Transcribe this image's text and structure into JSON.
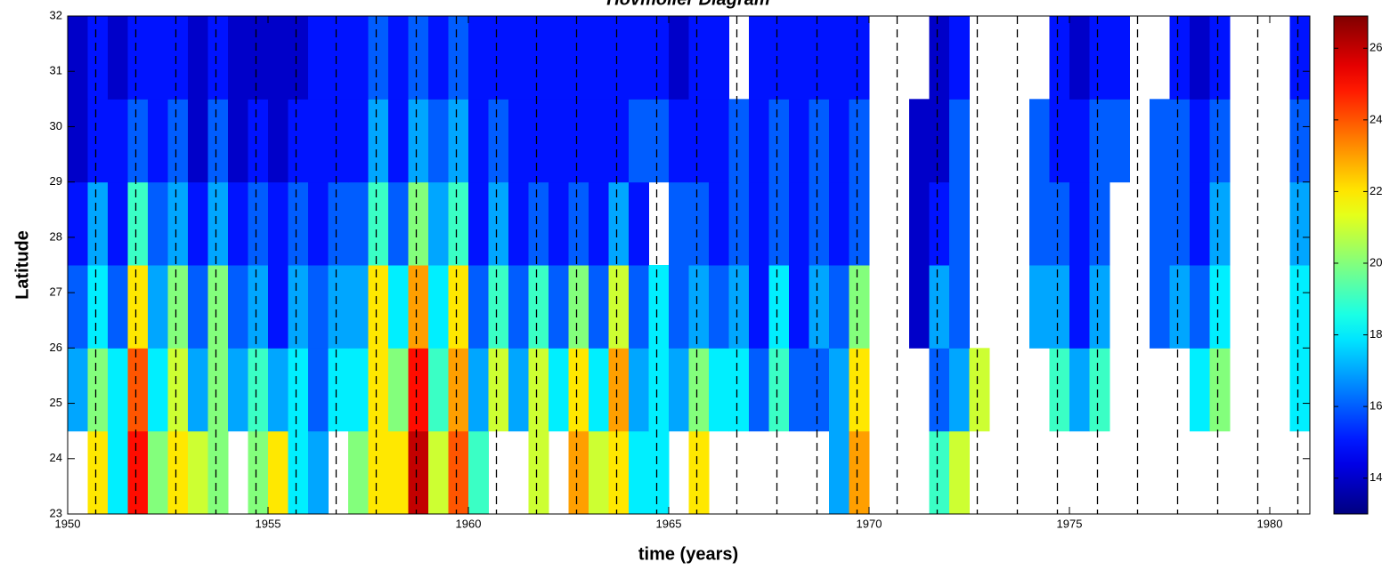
{
  "chart_data": {
    "type": "heatmap",
    "title": "Hovmoller Diagram",
    "xlabel": "time (years)",
    "ylabel": "Latitude",
    "xlim": [
      1950,
      1981
    ],
    "ylim": [
      23,
      32
    ],
    "xticks": [
      1950,
      1955,
      1960,
      1965,
      1970,
      1975,
      1980
    ],
    "yticks": [
      23,
      24,
      25,
      26,
      27,
      28,
      29,
      30,
      31,
      32
    ],
    "colormap": "jet",
    "clim": [
      13,
      26.9
    ],
    "cticks": [
      14,
      16,
      18,
      20,
      22,
      24,
      26
    ],
    "dashed_lines": [
      1950.7,
      1951.7,
      1952.7,
      1953.7,
      1954.7,
      1955.7,
      1956.7,
      1957.7,
      1958.7,
      1959.7,
      1960.7,
      1961.7,
      1962.7,
      1963.7,
      1964.7,
      1965.7,
      1966.7,
      1967.7,
      1968.7,
      1969.7,
      1970.7,
      1971.7,
      1972.7,
      1973.7,
      1974.7,
      1975.7,
      1976.7,
      1977.7,
      1978.7,
      1979.7,
      1980.7
    ],
    "x": [
      1950.25,
      1950.75,
      1951.25,
      1951.75,
      1952.25,
      1952.75,
      1953.25,
      1953.75,
      1954.25,
      1954.75,
      1955.25,
      1955.75,
      1956.25,
      1956.75,
      1957.25,
      1957.75,
      1958.25,
      1958.75,
      1959.25,
      1959.75,
      1960.25,
      1960.75,
      1961.25,
      1961.75,
      1962.25,
      1962.75,
      1963.25,
      1963.75,
      1964.25,
      1964.75,
      1965.25,
      1965.75,
      1966.25,
      1966.75,
      1967.25,
      1967.75,
      1968.25,
      1968.75,
      1969.25,
      1969.75,
      1970.25,
      1970.75,
      1971.25,
      1971.75,
      1972.25,
      1972.75,
      1973.25,
      1973.75,
      1974.25,
      1974.75,
      1975.25,
      1975.75,
      1976.25,
      1976.75,
      1977.25,
      1977.75,
      1978.25,
      1978.75,
      1979.25,
      1979.75,
      1980.25,
      1980.75
    ],
    "y": [
      23.75,
      25.25,
      26.75,
      28.25,
      29.75,
      31.25
    ],
    "z": [
      [
        null,
        22,
        18,
        25,
        20,
        22,
        21,
        20,
        null,
        20,
        22,
        18,
        17,
        null,
        20,
        22,
        22,
        26,
        21,
        24,
        19,
        null,
        null,
        21,
        null,
        23,
        21,
        22,
        18,
        18,
        null,
        22,
        null,
        null,
        null,
        null,
        null,
        null,
        17,
        23,
        null,
        null,
        null,
        19,
        21,
        null,
        null,
        null,
        null,
        null,
        null,
        null,
        null,
        null,
        null,
        null,
        null,
        null,
        null,
        null,
        null,
        null
      ],
      [
        17,
        20,
        18,
        24,
        18,
        21,
        17,
        20,
        17,
        19,
        17,
        18,
        16,
        18,
        18,
        22,
        20,
        25,
        19,
        23,
        17,
        21,
        17,
        21,
        18,
        22,
        18,
        23,
        17,
        18,
        17,
        20,
        18,
        18,
        16,
        19,
        16,
        16,
        17,
        22,
        null,
        null,
        null,
        16,
        17,
        21,
        null,
        null,
        null,
        19,
        17,
        19,
        null,
        null,
        null,
        null,
        18,
        20,
        null,
        null,
        null,
        18
      ],
      [
        16,
        18,
        16,
        22,
        17,
        20,
        16,
        20,
        16,
        17,
        15,
        17,
        16,
        17,
        17,
        22,
        18,
        23,
        18,
        22,
        16,
        19,
        16,
        19,
        16,
        20,
        16,
        21,
        16,
        18,
        16,
        17,
        16,
        17,
        15,
        18,
        15,
        17,
        16,
        20,
        null,
        null,
        14,
        17,
        16,
        null,
        null,
        null,
        17,
        17,
        15,
        17,
        null,
        null,
        16,
        17,
        16,
        18,
        null,
        null,
        null,
        18
      ],
      [
        15,
        17,
        15,
        19,
        16,
        17,
        15,
        17,
        15,
        16,
        15,
        16,
        15,
        16,
        16,
        19,
        16,
        20,
        17,
        19,
        15,
        17,
        15,
        16,
        15,
        16,
        15,
        17,
        15,
        null,
        16,
        16,
        15,
        16,
        15,
        16,
        15,
        16,
        15,
        16,
        null,
        null,
        14,
        15,
        16,
        null,
        null,
        null,
        16,
        16,
        15,
        16,
        null,
        null,
        16,
        16,
        15,
        17,
        null,
        null,
        null,
        17
      ],
      [
        14,
        15,
        15,
        16,
        15,
        16,
        14,
        16,
        14,
        15,
        14,
        15,
        15,
        15,
        15,
        17,
        15,
        17,
        16,
        17,
        15,
        16,
        15,
        15,
        15,
        15,
        15,
        15,
        16,
        16,
        15,
        15,
        15,
        16,
        15,
        16,
        15,
        16,
        15,
        16,
        null,
        null,
        14,
        14,
        16,
        null,
        null,
        null,
        16,
        15,
        15,
        16,
        16,
        null,
        16,
        16,
        15,
        16,
        null,
        null,
        null,
        16
      ],
      [
        14,
        15,
        14,
        15,
        15,
        15,
        14,
        15,
        14,
        14,
        14,
        14,
        15,
        15,
        15,
        16,
        15,
        16,
        15,
        16,
        15,
        15,
        15,
        15,
        15,
        15,
        15,
        15,
        15,
        15,
        14,
        15,
        15,
        null,
        15,
        15,
        15,
        15,
        15,
        15,
        null,
        null,
        null,
        14,
        15,
        null,
        null,
        null,
        null,
        15,
        14,
        15,
        15,
        null,
        null,
        15,
        14,
        15,
        null,
        null,
        null,
        15
      ]
    ]
  }
}
